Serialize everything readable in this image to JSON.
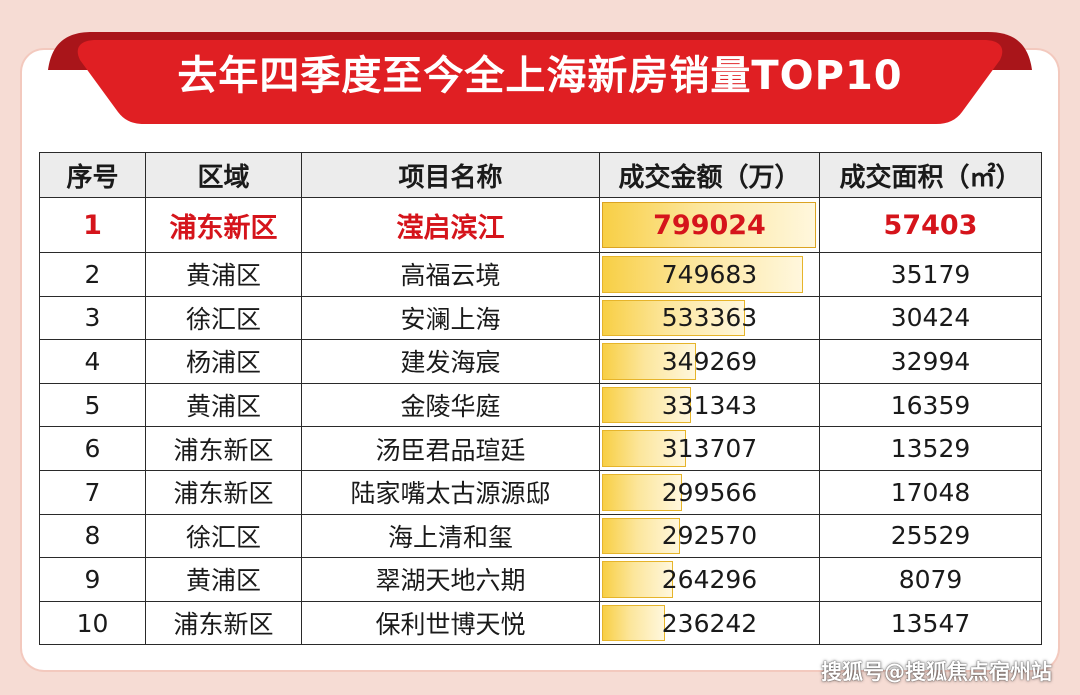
{
  "page": {
    "title": "去年四季度至今全上海新房销量TOP10",
    "watermark": "搜狐号@搜狐焦点宿州站",
    "colors": {
      "banner": "#e01f23",
      "banner_dark": "#a9151a",
      "highlight_text": "#d5141b",
      "bar_fill": "#f8cf45",
      "bar_border": "#e6b42a"
    }
  },
  "chart_data": {
    "type": "table",
    "title": "去年四季度至今全上海新房销量TOP10",
    "columns": [
      "序号",
      "区域",
      "项目名称",
      "成交金额（万）",
      "成交面积（㎡）"
    ],
    "rows": [
      {
        "rank": "1",
        "district": "浦东新区",
        "project": "滢启滨江",
        "amount": 799024,
        "area": "57403"
      },
      {
        "rank": "2",
        "district": "黄浦区",
        "project": "高福云境",
        "amount": 749683,
        "area": "35179"
      },
      {
        "rank": "3",
        "district": "徐汇区",
        "project": "安澜上海",
        "amount": 533363,
        "area": "30424"
      },
      {
        "rank": "4",
        "district": "杨浦区",
        "project": "建发海宸",
        "amount": 349269,
        "area": "32994"
      },
      {
        "rank": "5",
        "district": "黄浦区",
        "project": "金陵华庭",
        "amount": 331343,
        "area": "16359"
      },
      {
        "rank": "6",
        "district": "浦东新区",
        "project": "汤臣君品瑄廷",
        "amount": 313707,
        "area": "13529"
      },
      {
        "rank": "7",
        "district": "浦东新区",
        "project": "陆家嘴太古源源邸",
        "amount": 299566,
        "area": "17048"
      },
      {
        "rank": "8",
        "district": "徐汇区",
        "project": "海上清和玺",
        "amount": 292570,
        "area": "25529"
      },
      {
        "rank": "9",
        "district": "黄浦区",
        "project": "翠湖天地六期",
        "amount": 264296,
        "area": "8079"
      },
      {
        "rank": "10",
        "district": "浦东新区",
        "project": "保利世博天悦",
        "amount": 236242,
        "area": "13547"
      }
    ]
  }
}
